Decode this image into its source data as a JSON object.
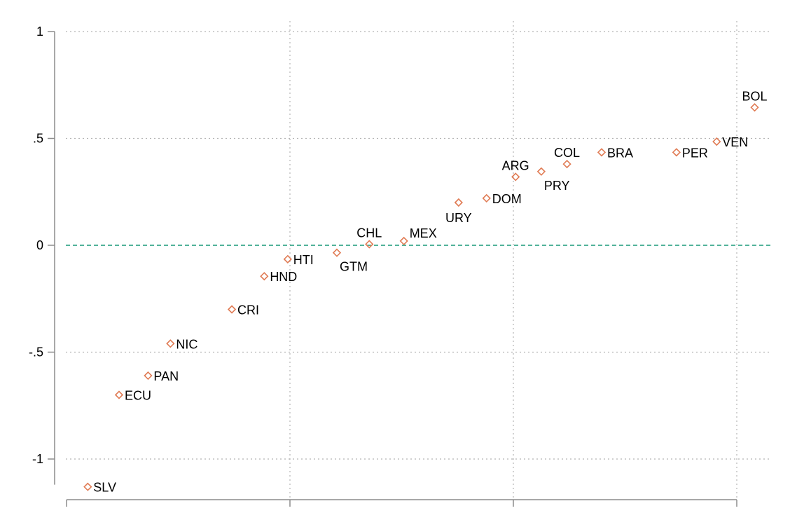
{
  "chart_data": {
    "type": "scatter",
    "marker": "diamond-open",
    "marker_color": "#e07b54",
    "reference_line": {
      "y": 0,
      "color": "#1a9a7a",
      "style": "dashed"
    },
    "grid": true,
    "grid_style": "dotted",
    "xlim": [
      0,
      3.1
    ],
    "ylim": [
      -1.17,
      1.0
    ],
    "x_ticks_visible_labels": false,
    "y_ticks": [
      {
        "value": 1,
        "label": "1"
      },
      {
        "value": 0.5,
        "label": ".5"
      },
      {
        "value": 0,
        "label": "0"
      },
      {
        "value": -0.5,
        "label": "-.5"
      },
      {
        "value": -1,
        "label": "-1"
      }
    ],
    "x_ticks": [
      0.0,
      1.0,
      2.0,
      3.0
    ],
    "points": [
      {
        "label": "SLV",
        "x": 0.095,
        "y": -1.13,
        "pos": "right"
      },
      {
        "label": "ECU",
        "x": 0.235,
        "y": -0.7,
        "pos": "right"
      },
      {
        "label": "PAN",
        "x": 0.365,
        "y": -0.61,
        "pos": "right"
      },
      {
        "label": "NIC",
        "x": 0.465,
        "y": -0.46,
        "pos": "right"
      },
      {
        "label": "CRI",
        "x": 0.74,
        "y": -0.3,
        "pos": "right"
      },
      {
        "label": "HND",
        "x": 0.885,
        "y": -0.145,
        "pos": "right"
      },
      {
        "label": "HTI",
        "x": 0.99,
        "y": -0.065,
        "pos": "right"
      },
      {
        "label": "GTM",
        "x": 1.21,
        "y": -0.035,
        "pos": "below-right"
      },
      {
        "label": "CHL",
        "x": 1.355,
        "y": 0.005,
        "pos": "above"
      },
      {
        "label": "MEX",
        "x": 1.51,
        "y": 0.02,
        "pos": "above-right"
      },
      {
        "label": "URY",
        "x": 1.755,
        "y": 0.2,
        "pos": "below"
      },
      {
        "label": "DOM",
        "x": 1.88,
        "y": 0.22,
        "pos": "right"
      },
      {
        "label": "ARG",
        "x": 2.01,
        "y": 0.32,
        "pos": "above"
      },
      {
        "label": "PRY",
        "x": 2.125,
        "y": 0.345,
        "pos": "below-right"
      },
      {
        "label": "COL",
        "x": 2.24,
        "y": 0.38,
        "pos": "above"
      },
      {
        "label": "BRA",
        "x": 2.395,
        "y": 0.435,
        "pos": "right"
      },
      {
        "label": "PER",
        "x": 2.73,
        "y": 0.435,
        "pos": "right"
      },
      {
        "label": "VEN",
        "x": 2.91,
        "y": 0.485,
        "pos": "right"
      },
      {
        "label": "BOL",
        "x": 3.08,
        "y": 0.645,
        "pos": "above"
      }
    ]
  }
}
